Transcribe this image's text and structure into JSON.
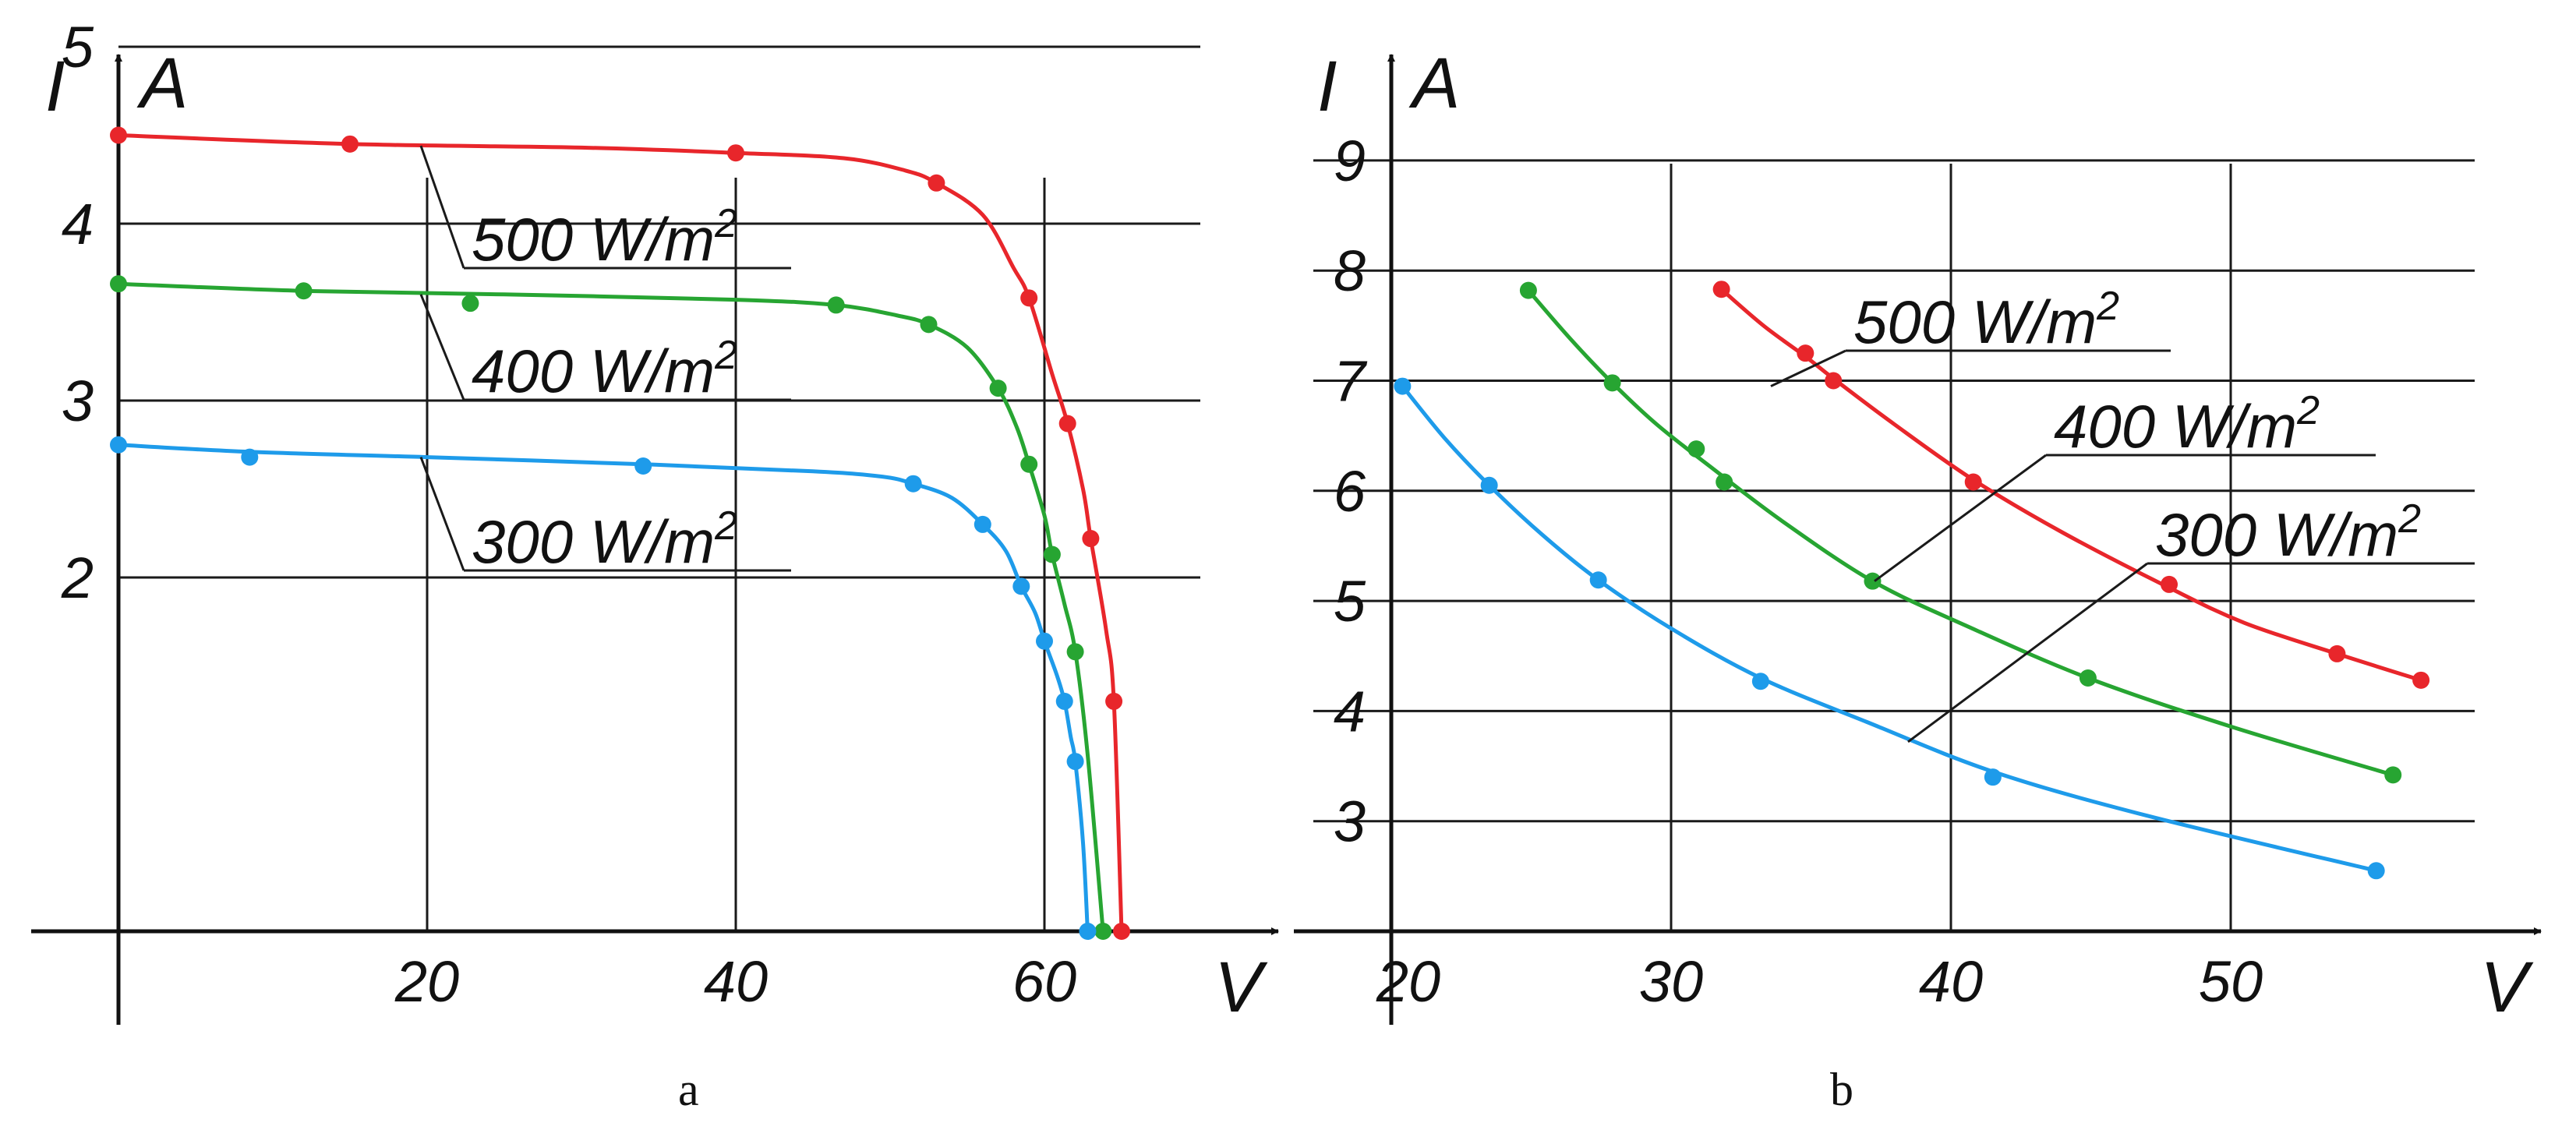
{
  "chart_data": [
    {
      "type": "line",
      "caption": "a",
      "xlabel": "V",
      "ylabel_symbol": "I",
      "ylabel_unit": "A",
      "xlim": [
        0,
        70
      ],
      "ylim": [
        0,
        5
      ],
      "xticks": [
        20,
        40,
        60
      ],
      "yticks": [
        2,
        3,
        4,
        5
      ],
      "grid": true,
      "series": [
        {
          "name": "500 W/m²",
          "color": "#e8262b",
          "label_text": "500 W/m",
          "label_sup": "2",
          "points": [
            [
              0,
              4.5
            ],
            [
              15,
              4.45
            ],
            [
              40,
              4.4
            ],
            [
              53,
              4.23
            ],
            [
              59,
              3.58
            ],
            [
              61.5,
              2.87
            ],
            [
              63,
              2.22
            ],
            [
              64.5,
              1.3
            ],
            [
              65,
              0.0
            ]
          ],
          "curve": [
            [
              0,
              4.5
            ],
            [
              15,
              4.45
            ],
            [
              30,
              4.43
            ],
            [
              40,
              4.4
            ],
            [
              47,
              4.37
            ],
            [
              51,
              4.3
            ],
            [
              53,
              4.23
            ],
            [
              56,
              4.05
            ],
            [
              58,
              3.75
            ],
            [
              59,
              3.58
            ],
            [
              60.5,
              3.15
            ],
            [
              61.5,
              2.87
            ],
            [
              62.5,
              2.5
            ],
            [
              63,
              2.22
            ],
            [
              64,
              1.7
            ],
            [
              64.5,
              1.3
            ],
            [
              65,
              0.0
            ]
          ]
        },
        {
          "name": "400 W/m²",
          "color": "#27a532",
          "label_text": "400 W/m",
          "label_sup": "2",
          "points": [
            [
              0,
              3.66
            ],
            [
              12,
              3.62
            ],
            [
              22.8,
              3.55
            ],
            [
              46.5,
              3.54
            ],
            [
              52.5,
              3.43
            ],
            [
              57,
              3.07
            ],
            [
              59,
              2.64
            ],
            [
              60.5,
              2.13
            ],
            [
              62,
              1.58
            ],
            [
              63.8,
              0.0
            ]
          ],
          "curve": [
            [
              0,
              3.66
            ],
            [
              12,
              3.62
            ],
            [
              25,
              3.6
            ],
            [
              40,
              3.57
            ],
            [
              46.5,
              3.54
            ],
            [
              50.5,
              3.48
            ],
            [
              52.5,
              3.43
            ],
            [
              55,
              3.3
            ],
            [
              57,
              3.07
            ],
            [
              58.2,
              2.85
            ],
            [
              59,
              2.64
            ],
            [
              60,
              2.35
            ],
            [
              60.5,
              2.13
            ],
            [
              61.3,
              1.85
            ],
            [
              62,
              1.58
            ],
            [
              62.8,
              1.0
            ],
            [
              63.8,
              0.0
            ]
          ]
        },
        {
          "name": "300 W/m²",
          "color": "#1e9bea",
          "label_text": "300 W/m",
          "label_sup": "2",
          "points": [
            [
              0,
              2.75
            ],
            [
              8.5,
              2.68
            ],
            [
              34,
              2.63
            ],
            [
              51.5,
              2.53
            ],
            [
              56,
              2.3
            ],
            [
              58.5,
              1.95
            ],
            [
              60,
              1.64
            ],
            [
              61.3,
              1.3
            ],
            [
              62,
              0.96
            ],
            [
              62.8,
              0.0
            ]
          ],
          "curve": [
            [
              0,
              2.75
            ],
            [
              8.5,
              2.71
            ],
            [
              20,
              2.68
            ],
            [
              34,
              2.64
            ],
            [
              45,
              2.6
            ],
            [
              49.5,
              2.57
            ],
            [
              51.5,
              2.53
            ],
            [
              54,
              2.45
            ],
            [
              56,
              2.3
            ],
            [
              57.5,
              2.15
            ],
            [
              58.5,
              1.95
            ],
            [
              59.4,
              1.8
            ],
            [
              60,
              1.64
            ],
            [
              60.8,
              1.45
            ],
            [
              61.3,
              1.3
            ],
            [
              61.7,
              1.1
            ],
            [
              62,
              0.96
            ],
            [
              62.5,
              0.5
            ],
            [
              62.8,
              0.0
            ]
          ]
        }
      ]
    },
    {
      "type": "line",
      "caption": "b",
      "xlabel": "V",
      "ylabel_symbol": "I",
      "ylabel_unit": "A",
      "xlim": [
        20,
        60
      ],
      "ylim": [
        2,
        9
      ],
      "xticks": [
        20,
        30,
        40,
        50
      ],
      "yticks": [
        3,
        4,
        5,
        6,
        7,
        8,
        9
      ],
      "grid": true,
      "series": [
        {
          "name": "500 W/m²",
          "color": "#e8262b",
          "label_text": "500 W/m",
          "label_sup": "2",
          "points": [
            [
              31.8,
              7.83
            ],
            [
              34.8,
              7.25
            ],
            [
              35.8,
              7.0
            ],
            [
              40.8,
              6.08
            ],
            [
              47.8,
              5.15
            ],
            [
              53.8,
              4.52
            ],
            [
              56.8,
              4.28
            ]
          ],
          "curve": [
            [
              31.8,
              7.83
            ],
            [
              33.3,
              7.5
            ],
            [
              34.8,
              7.22
            ],
            [
              35.8,
              7.02
            ],
            [
              38,
              6.6
            ],
            [
              40.8,
              6.1
            ],
            [
              44,
              5.62
            ],
            [
              47.8,
              5.12
            ],
            [
              50.5,
              4.8
            ],
            [
              53.8,
              4.52
            ],
            [
              56.8,
              4.28
            ]
          ]
        },
        {
          "name": "400 W/m²",
          "color": "#27a532",
          "label_text": "400 W/m",
          "label_sup": "2",
          "points": [
            [
              24.9,
              7.82
            ],
            [
              27.9,
              6.98
            ],
            [
              30.9,
              6.38
            ],
            [
              31.9,
              6.08
            ],
            [
              37.2,
              5.18
            ],
            [
              44.9,
              4.3
            ],
            [
              55.8,
              3.42
            ]
          ],
          "curve": [
            [
              24.9,
              7.82
            ],
            [
              26.4,
              7.38
            ],
            [
              27.9,
              6.98
            ],
            [
              29.5,
              6.6
            ],
            [
              31.5,
              6.2
            ],
            [
              34,
              5.72
            ],
            [
              37.2,
              5.18
            ],
            [
              40.5,
              4.78
            ],
            [
              44.9,
              4.3
            ],
            [
              50,
              3.86
            ],
            [
              55.8,
              3.42
            ]
          ]
        },
        {
          "name": "300 W/m²",
          "color": "#1e9bea",
          "label_text": "300 W/m",
          "label_sup": "2",
          "points": [
            [
              20.4,
              6.95
            ],
            [
              23.5,
              6.05
            ],
            [
              27.4,
              5.19
            ],
            [
              33.2,
              4.27
            ],
            [
              41.5,
              3.4
            ],
            [
              55.2,
              2.55
            ]
          ],
          "curve": [
            [
              20.4,
              6.95
            ],
            [
              21.9,
              6.48
            ],
            [
              23.5,
              6.05
            ],
            [
              25.4,
              5.6
            ],
            [
              27.4,
              5.19
            ],
            [
              30,
              4.75
            ],
            [
              33.2,
              4.3
            ],
            [
              37,
              3.9
            ],
            [
              41.5,
              3.45
            ],
            [
              47,
              3.05
            ],
            [
              55.2,
              2.55
            ]
          ]
        }
      ]
    }
  ]
}
